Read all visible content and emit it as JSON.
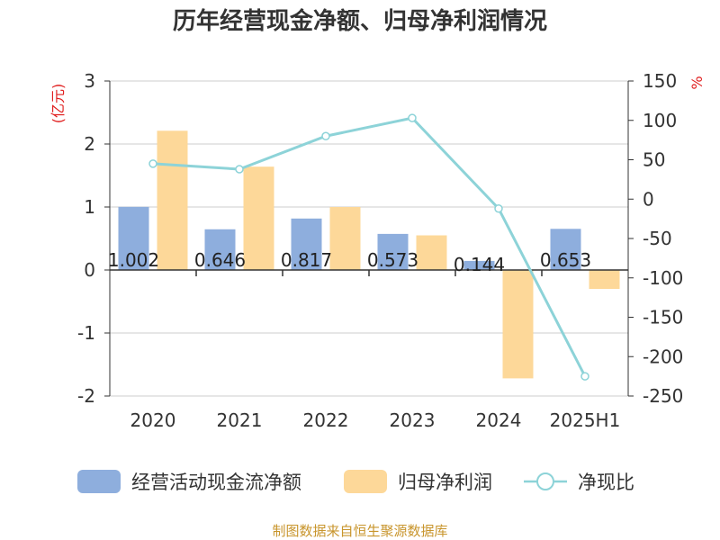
{
  "title": "历年经营现金净额、归母净利润情况",
  "source": "制图数据来自恒生聚源数据库",
  "colors": {
    "operating_cash": "#8eaedd",
    "net_profit": "#fdd899",
    "ratio": "#8dd3d8",
    "axis": "#333333",
    "grid": "#cccccc",
    "unit": "#e02020"
  },
  "chart_data": {
    "type": "bar",
    "title": "历年经营现金净额、归母净利润情况",
    "categories": [
      "2020",
      "2021",
      "2022",
      "2023",
      "2024",
      "2025H1"
    ],
    "left_axis": {
      "unit": "(亿元)",
      "ylim": [
        -2,
        3
      ],
      "ticks": [
        -2,
        -1,
        0,
        1,
        2,
        3
      ]
    },
    "right_axis": {
      "unit": "%",
      "ylim": [
        -250,
        150
      ],
      "ticks": [
        -250,
        -200,
        -150,
        -100,
        -50,
        0,
        50,
        100,
        150
      ]
    },
    "grid": true,
    "legend_position": "bottom",
    "series": [
      {
        "name": "经营活动现金流净额",
        "type": "bar",
        "axis": "left",
        "values": [
          1.002,
          0.646,
          0.817,
          0.573,
          0.144,
          0.653
        ],
        "labels": [
          "1.002",
          "0.646",
          "0.817",
          "0.573",
          "0.144",
          "0.653"
        ]
      },
      {
        "name": "归母净利润",
        "type": "bar",
        "axis": "left",
        "values": [
          2.21,
          1.64,
          1.0,
          0.55,
          -1.72,
          -0.3
        ]
      },
      {
        "name": "净现比",
        "type": "line",
        "axis": "right",
        "values": [
          45,
          38,
          80,
          103,
          -12,
          -225
        ]
      }
    ]
  }
}
